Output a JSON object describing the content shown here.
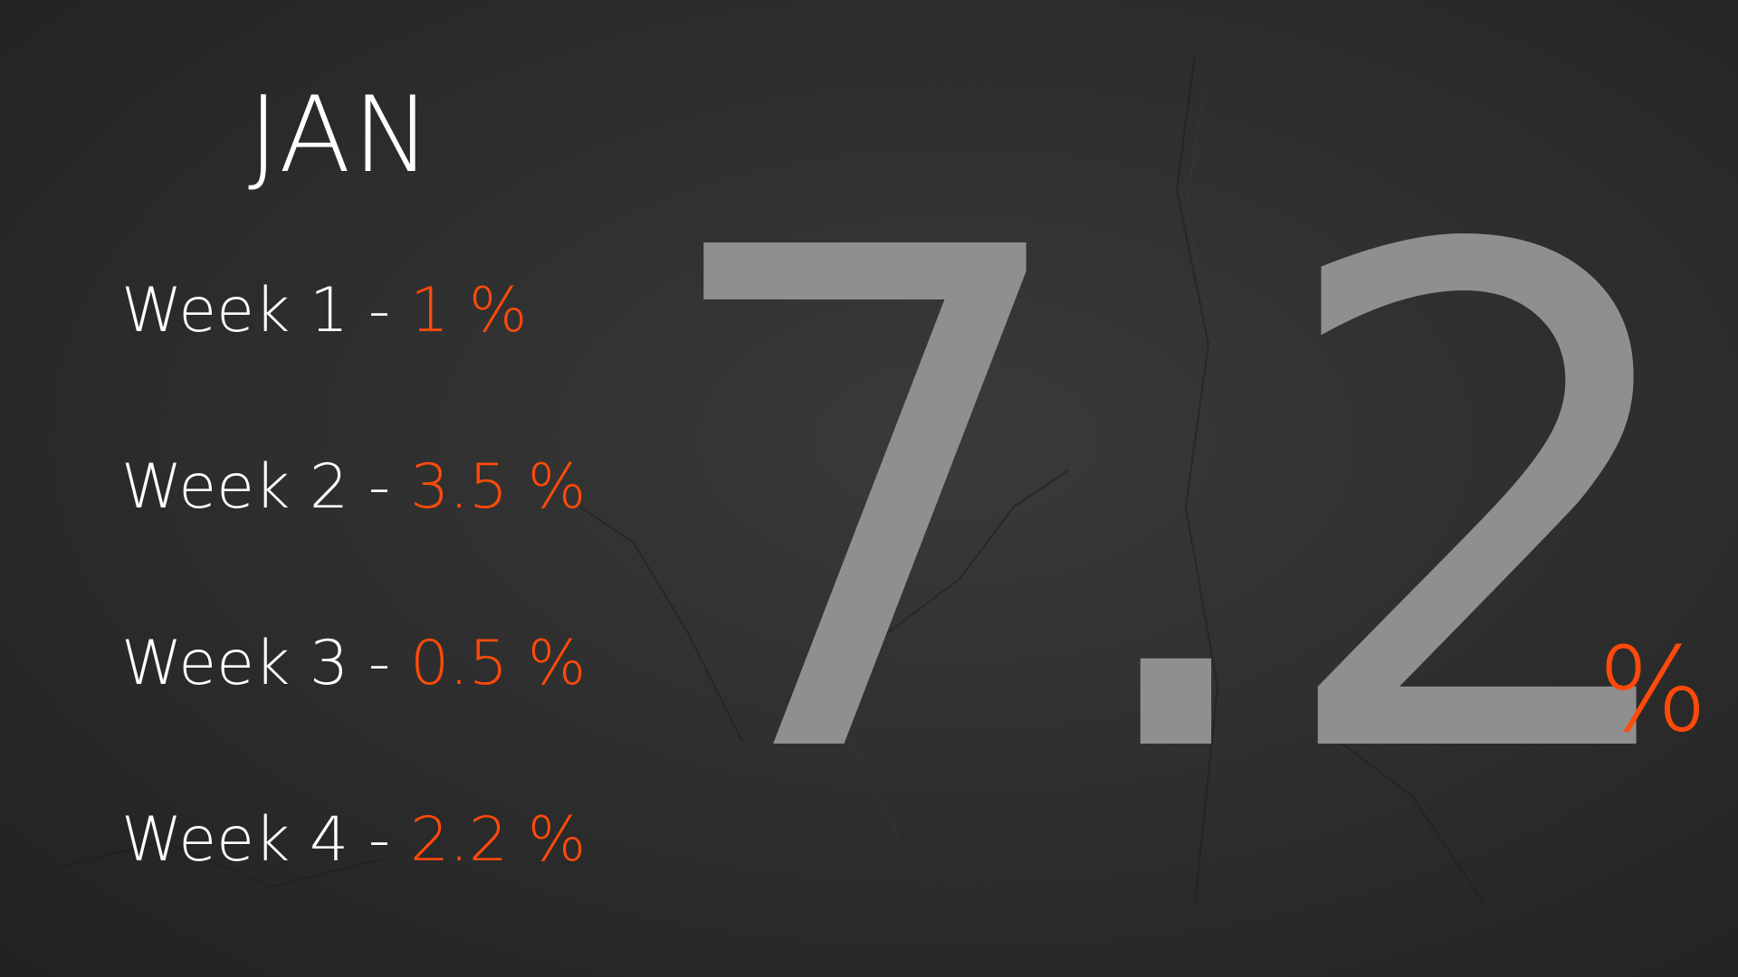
{
  "title": "JAN",
  "weeks": [
    {
      "label": "Week 1 - ",
      "value": "1 %"
    },
    {
      "label": "Week 2 - ",
      "value": "3.5 %"
    },
    {
      "label": "Week 3 - ",
      "value": "0.5 %"
    },
    {
      "label": "Week 4 - ",
      "value": "2.2 %"
    }
  ],
  "total": {
    "number": "7.2",
    "unit": "%"
  },
  "colors": {
    "background": "#2f2f2f",
    "text": "#ffffff",
    "accent": "#ff4a0a",
    "big_number": "#8f8f8f"
  }
}
